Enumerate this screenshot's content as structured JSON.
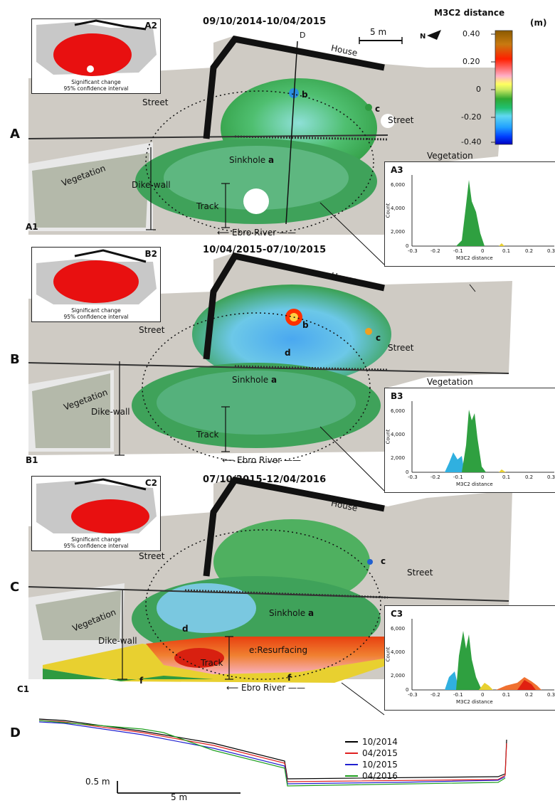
{
  "panels": {
    "A": {
      "letter": "A",
      "sub": "A1",
      "title": "09/10/2014-10/04/2015",
      "inset_tag": "A2",
      "hist_tag": "A3"
    },
    "B": {
      "letter": "B",
      "sub": "B1",
      "title": "10/04/2015-07/10/2015",
      "inset_tag": "B2",
      "hist_tag": "B3"
    },
    "C": {
      "letter": "C",
      "sub": "C1",
      "title": "07/10/2015-12/04/2016",
      "inset_tag": "C2",
      "hist_tag": "C3"
    }
  },
  "inset_caption_1": "Significant change",
  "inset_caption_2": "95% confidence interval",
  "labels": {
    "street": "Street",
    "house": "House",
    "vegetation": "Vegetation",
    "dikewall": "Dike-wall",
    "sinkhole": "Sinkhole",
    "a": "a",
    "b": "b",
    "c": "c",
    "d": "d",
    "e_resurf": "e:Resurfacing",
    "f": "f",
    "track": "Track",
    "ebro": "Ebro River",
    "D_line": "D",
    "scale_5m": "5 m",
    "north": "N"
  },
  "colorbar": {
    "title": "M3C2 distance",
    "unit": "(m)",
    "ticks": [
      "0.40",
      "0.20",
      "0",
      "-0.20",
      "-0.40"
    ],
    "colors": [
      "#8b5a00",
      "#c87a10",
      "#ff2000",
      "#ff6a6a",
      "#ffb0c8",
      "#ffff60",
      "#c8e860",
      "#30a830",
      "#20c070",
      "#60d8f0",
      "#20a0ff",
      "#0040ff",
      "#0000c0"
    ]
  },
  "histograms": {
    "xticks": [
      "-0.3",
      "-0.2",
      "-0.1",
      "0",
      "0.1",
      "0.2",
      "0.3"
    ],
    "yticks": [
      "6,000",
      "4,000",
      "2,000",
      "0"
    ],
    "xlabel": "M3C2 distance",
    "ylabel": "Count"
  },
  "profile": {
    "letter": "D",
    "scale_v": "0.5 m",
    "scale_h": "5 m",
    "series": [
      {
        "name": "10/2014",
        "color": "#000000"
      },
      {
        "name": "04/2015",
        "color": "#e02020"
      },
      {
        "name": "10/2015",
        "color": "#2020d0"
      },
      {
        "name": "04/2016",
        "color": "#20a020"
      }
    ]
  }
}
